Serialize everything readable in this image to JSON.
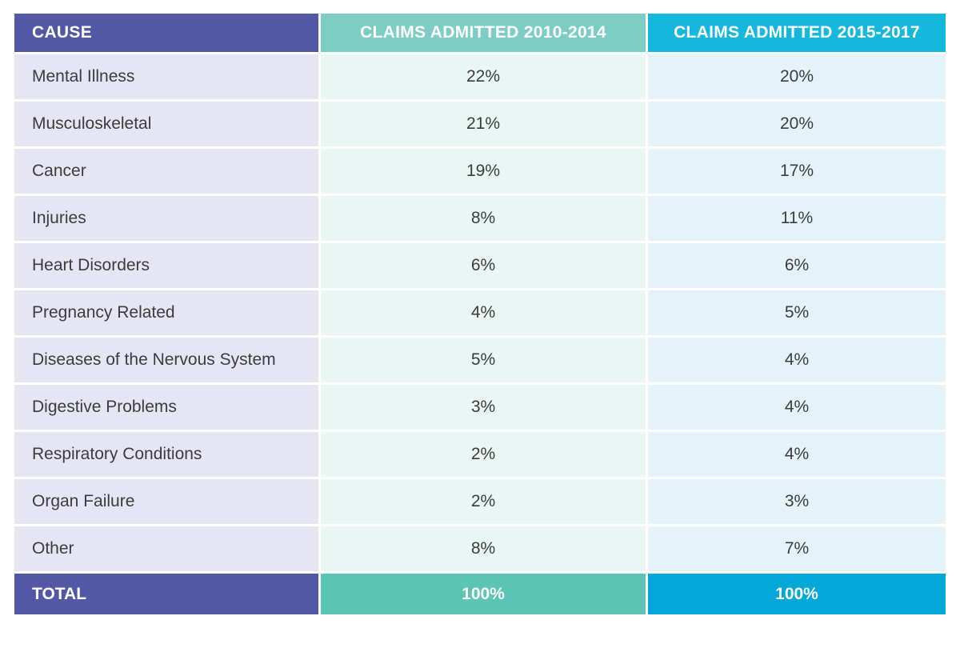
{
  "chart_data": {
    "type": "table",
    "columns": [
      "CAUSE",
      "CLAIMS ADMITTED 2010-2014",
      "CLAIMS ADMITTED 2015-2017"
    ],
    "rows": [
      {
        "cause": "Mental Illness",
        "v2010": "22%",
        "v2015": "20%"
      },
      {
        "cause": "Musculoskeletal",
        "v2010": "21%",
        "v2015": "20%"
      },
      {
        "cause": "Cancer",
        "v2010": "19%",
        "v2015": "17%"
      },
      {
        "cause": "Injuries",
        "v2010": "8%",
        "v2015": "11%"
      },
      {
        "cause": "Heart Disorders",
        "v2010": "6%",
        "v2015": "6%"
      },
      {
        "cause": "Pregnancy Related",
        "v2010": "4%",
        "v2015": "5%"
      },
      {
        "cause": "Diseases of the Nervous System",
        "v2010": "5%",
        "v2015": "4%"
      },
      {
        "cause": "Digestive Problems",
        "v2010": "3%",
        "v2015": "4%"
      },
      {
        "cause": "Respiratory Conditions",
        "v2010": "2%",
        "v2015": "4%"
      },
      {
        "cause": "Organ Failure",
        "v2010": "2%",
        "v2015": "3%"
      },
      {
        "cause": "Other",
        "v2010": "8%",
        "v2015": "7%"
      }
    ],
    "total": {
      "cause": "TOTAL",
      "v2010": "100%",
      "v2015": "100%"
    }
  },
  "colors": {
    "header_cause": "#5358a6",
    "header_2010": "#7ecdc4",
    "header_2015": "#15b8dd",
    "cell_cause": "#e6e5f3",
    "cell_2010": "#eaf6f3",
    "cell_2015": "#e3f3f9",
    "total_2010": "#5cc4b4",
    "total_2015": "#03a8d8"
  }
}
